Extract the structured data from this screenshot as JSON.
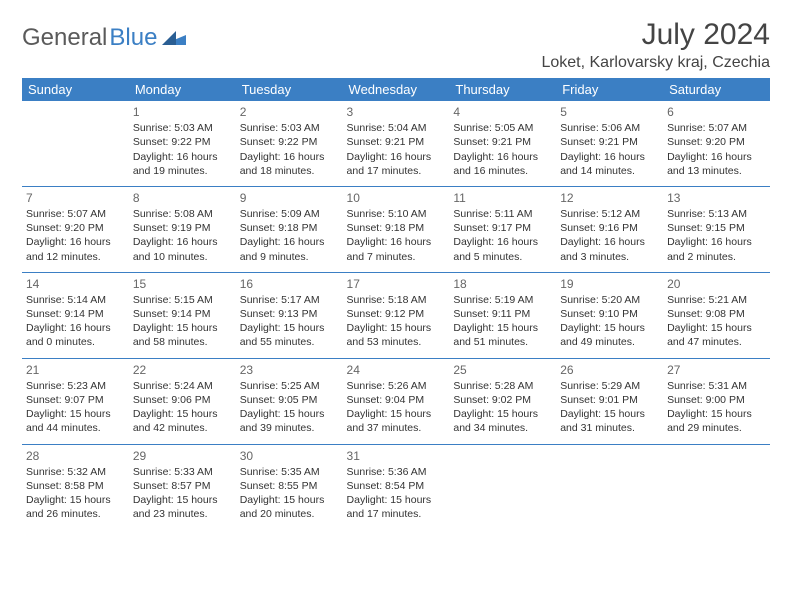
{
  "logo": {
    "part1": "General",
    "part2": "Blue"
  },
  "month_title": "July 2024",
  "location": "Loket, Karlovarsky kraj, Czechia",
  "colors": {
    "header_bg": "#3b7fc4",
    "header_text": "#ffffff",
    "border": "#3b7fc4",
    "text": "#333333",
    "logo_gray": "#5a5a5a",
    "logo_blue": "#3b7fc4"
  },
  "day_headers": [
    "Sunday",
    "Monday",
    "Tuesday",
    "Wednesday",
    "Thursday",
    "Friday",
    "Saturday"
  ],
  "weeks": [
    [
      null,
      {
        "n": "1",
        "sr": "5:03 AM",
        "ss": "9:22 PM",
        "dl": "16 hours and 19 minutes."
      },
      {
        "n": "2",
        "sr": "5:03 AM",
        "ss": "9:22 PM",
        "dl": "16 hours and 18 minutes."
      },
      {
        "n": "3",
        "sr": "5:04 AM",
        "ss": "9:21 PM",
        "dl": "16 hours and 17 minutes."
      },
      {
        "n": "4",
        "sr": "5:05 AM",
        "ss": "9:21 PM",
        "dl": "16 hours and 16 minutes."
      },
      {
        "n": "5",
        "sr": "5:06 AM",
        "ss": "9:21 PM",
        "dl": "16 hours and 14 minutes."
      },
      {
        "n": "6",
        "sr": "5:07 AM",
        "ss": "9:20 PM",
        "dl": "16 hours and 13 minutes."
      }
    ],
    [
      {
        "n": "7",
        "sr": "5:07 AM",
        "ss": "9:20 PM",
        "dl": "16 hours and 12 minutes."
      },
      {
        "n": "8",
        "sr": "5:08 AM",
        "ss": "9:19 PM",
        "dl": "16 hours and 10 minutes."
      },
      {
        "n": "9",
        "sr": "5:09 AM",
        "ss": "9:18 PM",
        "dl": "16 hours and 9 minutes."
      },
      {
        "n": "10",
        "sr": "5:10 AM",
        "ss": "9:18 PM",
        "dl": "16 hours and 7 minutes."
      },
      {
        "n": "11",
        "sr": "5:11 AM",
        "ss": "9:17 PM",
        "dl": "16 hours and 5 minutes."
      },
      {
        "n": "12",
        "sr": "5:12 AM",
        "ss": "9:16 PM",
        "dl": "16 hours and 3 minutes."
      },
      {
        "n": "13",
        "sr": "5:13 AM",
        "ss": "9:15 PM",
        "dl": "16 hours and 2 minutes."
      }
    ],
    [
      {
        "n": "14",
        "sr": "5:14 AM",
        "ss": "9:14 PM",
        "dl": "16 hours and 0 minutes."
      },
      {
        "n": "15",
        "sr": "5:15 AM",
        "ss": "9:14 PM",
        "dl": "15 hours and 58 minutes."
      },
      {
        "n": "16",
        "sr": "5:17 AM",
        "ss": "9:13 PM",
        "dl": "15 hours and 55 minutes."
      },
      {
        "n": "17",
        "sr": "5:18 AM",
        "ss": "9:12 PM",
        "dl": "15 hours and 53 minutes."
      },
      {
        "n": "18",
        "sr": "5:19 AM",
        "ss": "9:11 PM",
        "dl": "15 hours and 51 minutes."
      },
      {
        "n": "19",
        "sr": "5:20 AM",
        "ss": "9:10 PM",
        "dl": "15 hours and 49 minutes."
      },
      {
        "n": "20",
        "sr": "5:21 AM",
        "ss": "9:08 PM",
        "dl": "15 hours and 47 minutes."
      }
    ],
    [
      {
        "n": "21",
        "sr": "5:23 AM",
        "ss": "9:07 PM",
        "dl": "15 hours and 44 minutes."
      },
      {
        "n": "22",
        "sr": "5:24 AM",
        "ss": "9:06 PM",
        "dl": "15 hours and 42 minutes."
      },
      {
        "n": "23",
        "sr": "5:25 AM",
        "ss": "9:05 PM",
        "dl": "15 hours and 39 minutes."
      },
      {
        "n": "24",
        "sr": "5:26 AM",
        "ss": "9:04 PM",
        "dl": "15 hours and 37 minutes."
      },
      {
        "n": "25",
        "sr": "5:28 AM",
        "ss": "9:02 PM",
        "dl": "15 hours and 34 minutes."
      },
      {
        "n": "26",
        "sr": "5:29 AM",
        "ss": "9:01 PM",
        "dl": "15 hours and 31 minutes."
      },
      {
        "n": "27",
        "sr": "5:31 AM",
        "ss": "9:00 PM",
        "dl": "15 hours and 29 minutes."
      }
    ],
    [
      {
        "n": "28",
        "sr": "5:32 AM",
        "ss": "8:58 PM",
        "dl": "15 hours and 26 minutes."
      },
      {
        "n": "29",
        "sr": "5:33 AM",
        "ss": "8:57 PM",
        "dl": "15 hours and 23 minutes."
      },
      {
        "n": "30",
        "sr": "5:35 AM",
        "ss": "8:55 PM",
        "dl": "15 hours and 20 minutes."
      },
      {
        "n": "31",
        "sr": "5:36 AM",
        "ss": "8:54 PM",
        "dl": "15 hours and 17 minutes."
      },
      null,
      null,
      null
    ]
  ],
  "labels": {
    "sunrise_prefix": "Sunrise: ",
    "sunset_prefix": "Sunset: ",
    "daylight_prefix": "Daylight: "
  }
}
